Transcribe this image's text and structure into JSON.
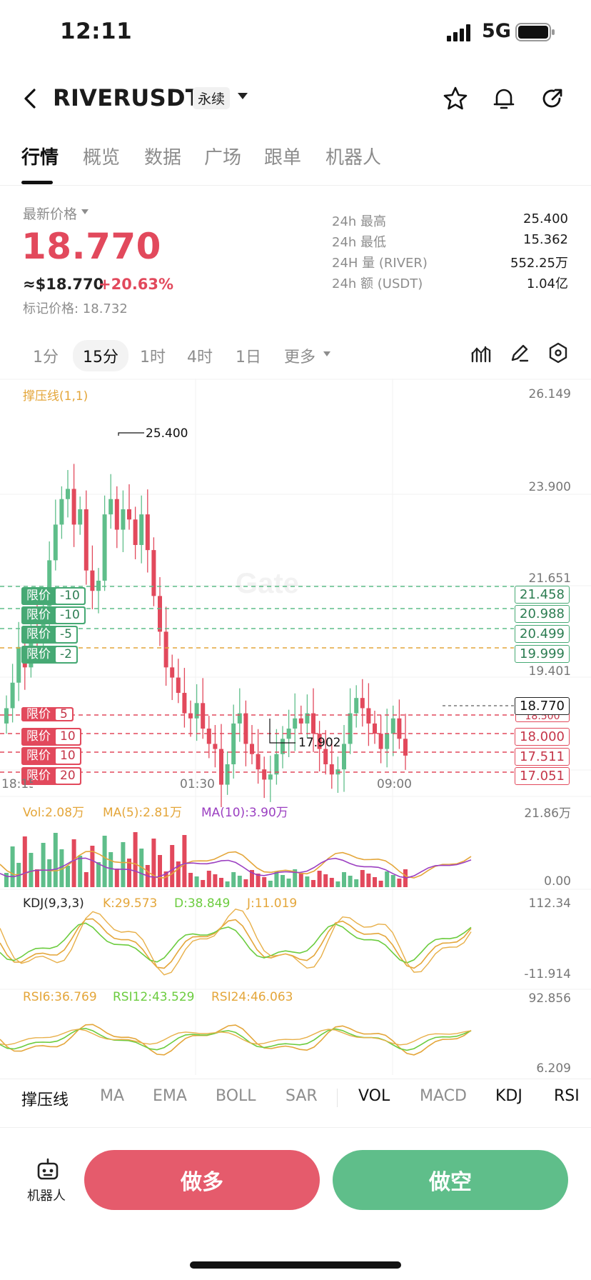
{
  "status": {
    "time": "12:11",
    "network": "5G"
  },
  "header": {
    "symbol": "RIVERUSDT",
    "contract": "永续"
  },
  "tabs": [
    "行情",
    "概览",
    "数据",
    "广场",
    "跟单",
    "机器人"
  ],
  "price": {
    "label": "最新价格",
    "last": "18.770",
    "approx": "≈$18.770",
    "change": "+20.63%",
    "mark": "标记价格: 18.732"
  },
  "stats": [
    {
      "label": "24h  最高",
      "value": "25.400"
    },
    {
      "label": "24h  最低",
      "value": "15.362"
    },
    {
      "label": "24H  量 (RIVER)",
      "value": "552.25万"
    },
    {
      "label": "24h  额 (USDT)",
      "value": "1.04亿"
    }
  ],
  "intervals": [
    "1分",
    "15分",
    "1时",
    "4时",
    "1日",
    "更多"
  ],
  "chart": {
    "indicator_label": "撑压线(1,1)",
    "y_axis": [
      "26.149",
      "23.900",
      "21.651",
      "19.401"
    ],
    "high_label": "25.400",
    "low_label": "17.902",
    "time_labels": [
      "18:15",
      "01:30",
      "09:00"
    ],
    "watermark": "Gate",
    "colors": {
      "up": "#5fbe8a",
      "down": "#e2495c"
    },
    "buy_orders": [
      {
        "label": "限价",
        "qty": "-10",
        "price": "21.458"
      },
      {
        "label": "限价",
        "qty": "-10",
        "price": "20.988"
      },
      {
        "label": "限价",
        "qty": "-5",
        "price": "20.499"
      },
      {
        "label": "限价",
        "qty": "-2",
        "price": "19.999"
      }
    ],
    "sell_orders": [
      {
        "label": "限价",
        "qty": "5",
        "price": "18.500"
      },
      {
        "label": "限价",
        "qty": "10",
        "price": "18.000"
      },
      {
        "label": "限价",
        "qty": "10",
        "price": "17.511"
      },
      {
        "label": "限价",
        "qty": "20",
        "price": "17.051"
      }
    ],
    "last_price_tag": "18.770",
    "vol": {
      "label": "Vol:2.08万",
      "ma5": "MA(5):2.81万",
      "ma10": "MA(10):3.90万",
      "max": "21.86万",
      "min": "0.00"
    },
    "kdj": {
      "label": "KDJ(9,3,3)",
      "k": "K:29.573",
      "d": "D:38.849",
      "j": "J:11.019",
      "max": "112.34",
      "min": "-11.914"
    },
    "rsi": {
      "r6": "RSI6:36.769",
      "r12": "RSI12:43.529",
      "r24": "RSI24:46.063",
      "max": "92.856",
      "min": "6.209"
    }
  },
  "indicator_tabs": [
    "撑压线",
    "MA",
    "EMA",
    "BOLL",
    "SAR",
    "VOL",
    "MACD",
    "KDJ",
    "RSI"
  ],
  "bottom": {
    "robot": "机器人",
    "long": "做多",
    "short": "做空"
  }
}
